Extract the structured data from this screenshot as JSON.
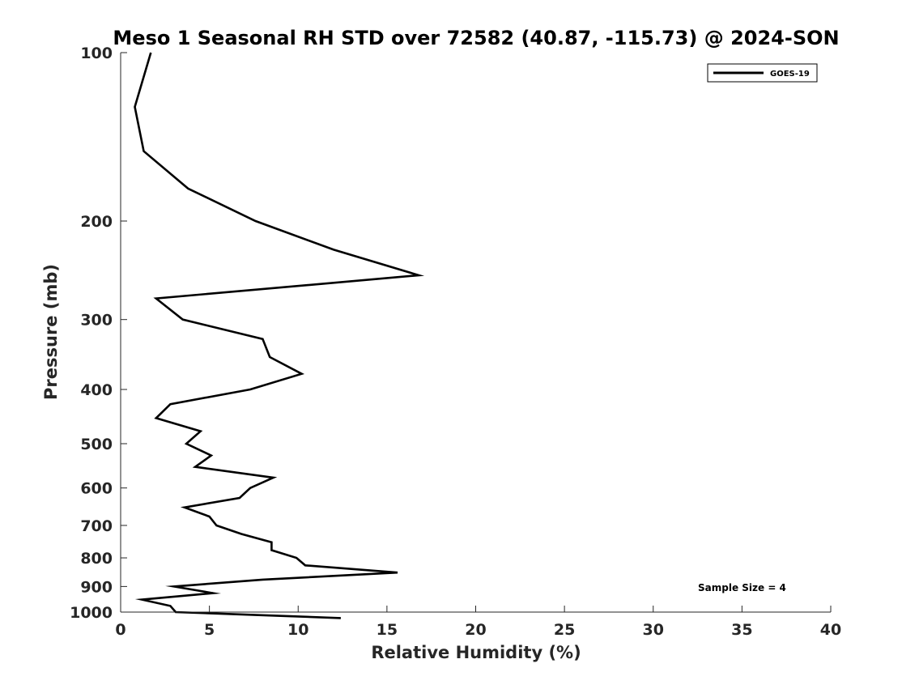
{
  "chart_data": {
    "type": "line",
    "title": "Meso 1 Seasonal RH STD over 72582 (40.87, -115.73) @ 2024-SON",
    "xlabel": "Relative Humidity (%)",
    "ylabel": "Pressure (mb)",
    "xlim": [
      0,
      40
    ],
    "ylim": [
      100,
      1000
    ],
    "y_scale": "log",
    "y_reversed": true,
    "grid": false,
    "legend_position": "top-right",
    "x_ticks": [
      0,
      5,
      10,
      15,
      20,
      25,
      30,
      35,
      40
    ],
    "x_tick_labels": [
      "0",
      "5",
      "10",
      "15",
      "20",
      "25",
      "30",
      "35",
      "40"
    ],
    "y_ticks": [
      100,
      200,
      300,
      400,
      500,
      600,
      700,
      800,
      900,
      1000
    ],
    "y_tick_labels": [
      "100",
      "200",
      "300",
      "400",
      "500",
      "600",
      "700",
      "800",
      "900",
      "1000"
    ],
    "annotation": "Sample Size = 4",
    "series": [
      {
        "name": "GOES-19",
        "color": "#000000",
        "points": [
          [
            1.7,
            100
          ],
          [
            0.8,
            125
          ],
          [
            1.3,
            150
          ],
          [
            3.8,
            175
          ],
          [
            7.6,
            200
          ],
          [
            12.0,
            225
          ],
          [
            16.8,
            250
          ],
          [
            2.0,
            275
          ],
          [
            3.5,
            300
          ],
          [
            8.0,
            325
          ],
          [
            8.4,
            350
          ],
          [
            10.2,
            375
          ],
          [
            7.3,
            400
          ],
          [
            2.8,
            425
          ],
          [
            2.0,
            450
          ],
          [
            4.5,
            475
          ],
          [
            3.7,
            500
          ],
          [
            5.1,
            525
          ],
          [
            4.2,
            550
          ],
          [
            8.6,
            575
          ],
          [
            7.3,
            600
          ],
          [
            6.7,
            625
          ],
          [
            3.6,
            650
          ],
          [
            5.0,
            675
          ],
          [
            5.4,
            700
          ],
          [
            6.8,
            725
          ],
          [
            8.5,
            750
          ],
          [
            8.5,
            775
          ],
          [
            9.9,
            800
          ],
          [
            10.4,
            825
          ],
          [
            15.6,
            850
          ],
          [
            8.0,
            875
          ],
          [
            3.0,
            900
          ],
          [
            5.2,
            925
          ],
          [
            1.2,
            950
          ],
          [
            2.8,
            975
          ],
          [
            3.1,
            1000
          ],
          [
            12.4,
            1025
          ]
        ]
      }
    ]
  }
}
